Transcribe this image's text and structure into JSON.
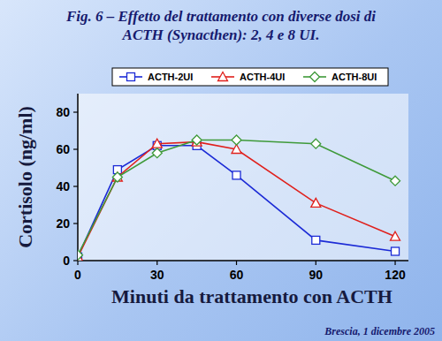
{
  "chart_data": {
    "type": "line",
    "title": "Fig. 6 – Effetto del trattamento con diverse dosi di\nACTH (Synacthen): 2, 4 e 8 UI.",
    "x_label": "Minuti da trattamento con ACTH",
    "y_label": "Cortisolo (ng/ml)",
    "annotation": "Brescia, 1 dicembre 2005",
    "x": [
      0,
      15,
      30,
      45,
      60,
      90,
      120
    ],
    "series": [
      {
        "name": "ACTH-2UI",
        "color": "#1c2bd6",
        "marker": "square",
        "values": [
          2,
          49,
          62,
          62,
          46,
          11,
          5
        ]
      },
      {
        "name": "ACTH-4UI",
        "color": "#e0201c",
        "marker": "triangle",
        "values": [
          2,
          45,
          63,
          64,
          60,
          31,
          13
        ]
      },
      {
        "name": "ACTH-8UI",
        "color": "#3f9a3a",
        "marker": "diamond",
        "values": [
          3,
          45,
          58,
          65,
          65,
          63,
          43
        ]
      }
    ],
    "xlim": [
      0,
      125
    ],
    "xticks": [
      0,
      30,
      60,
      90,
      120
    ],
    "ylim": [
      0,
      90
    ],
    "yticks": [
      0,
      20,
      40,
      60,
      80
    ],
    "grid": false,
    "legend": "top"
  }
}
